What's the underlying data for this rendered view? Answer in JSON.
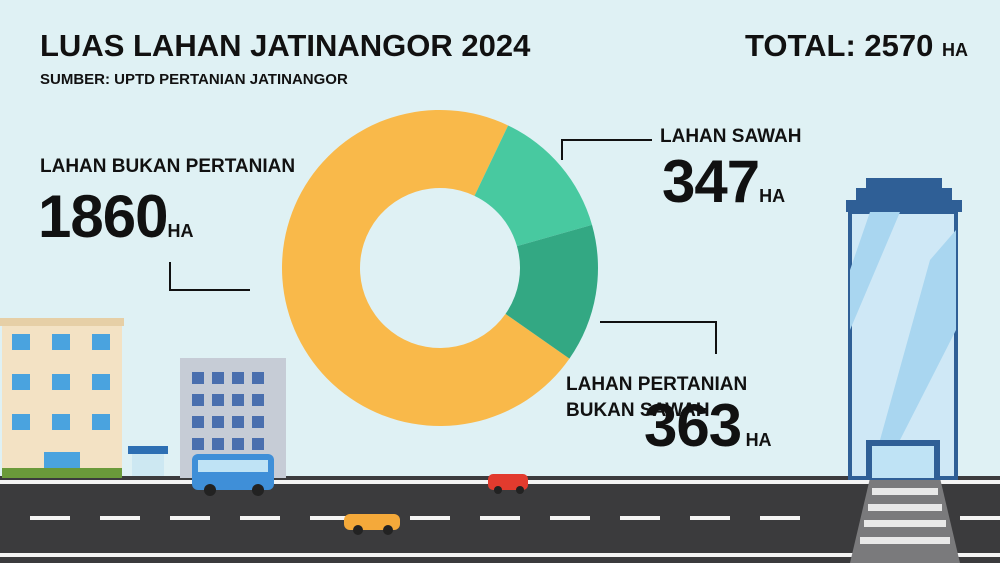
{
  "chart_data": {
    "type": "donut",
    "title": "LUAS LAHAN JATINANGOR 2024",
    "subtitle": "SUMBER: UPTD PERTANIAN JATINANGOR",
    "total_label": "TOTAL:",
    "total": 2570,
    "unit": "HA",
    "categories": [
      "LAHAN BUKAN PERTANIAN",
      "LAHAN SAWAH",
      "LAHAN PERTANIAN BUKAN SAWAH"
    ],
    "values": [
      1860,
      347,
      363
    ],
    "colors": [
      "#f9b94a",
      "#48c9a0",
      "#33a883"
    ]
  }
}
